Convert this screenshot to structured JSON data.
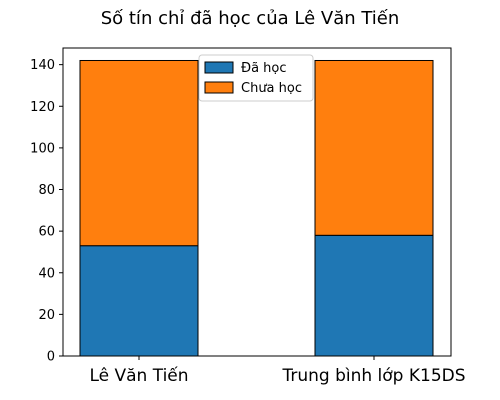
{
  "chart_data": {
    "type": "bar",
    "stacked": true,
    "title": "Số tín chỉ đã học của Lê Văn Tiến",
    "categories": [
      "Lê Văn Tiến",
      "Trung bình lớp K15DS"
    ],
    "series": [
      {
        "name": "Đã học",
        "values": [
          53,
          58
        ],
        "color": "#1f77b4"
      },
      {
        "name": "Chưa học",
        "values": [
          89,
          84
        ],
        "color": "#ff7f0e"
      }
    ],
    "ylim": [
      0,
      148
    ],
    "yticks": [
      0,
      20,
      40,
      60,
      80,
      100,
      120,
      140
    ],
    "grid": false,
    "legend_position": "top-center"
  }
}
